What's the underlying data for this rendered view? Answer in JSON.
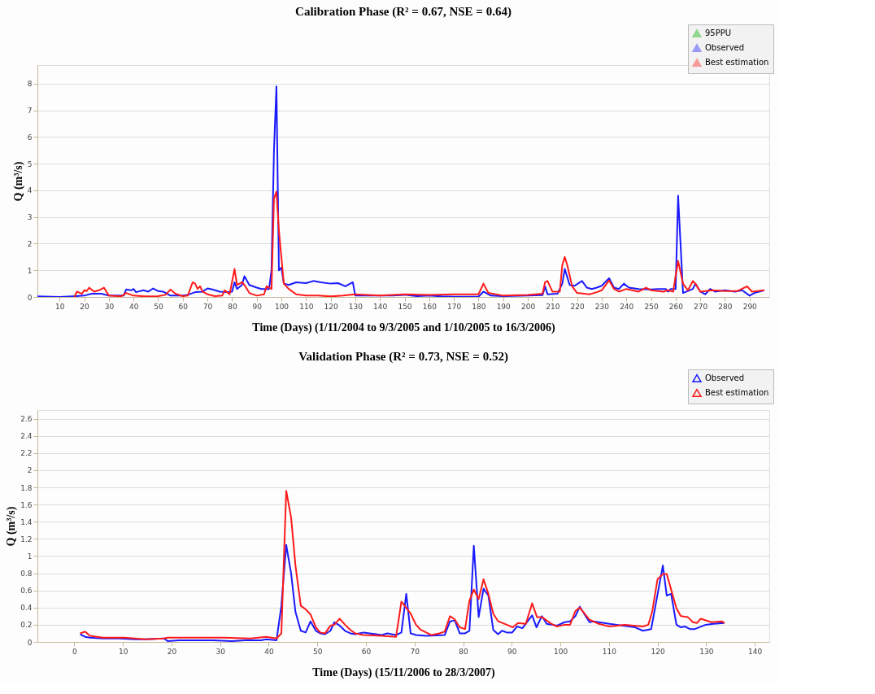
{
  "chart_data": [
    {
      "type": "line",
      "title": "Calibration Phase (R² = 0.67, NSE = 0.64)",
      "xlabel": "Time (Days) (1/11/2004 to 9/3/2005 and 1/10/2005 to 16/3/2006)",
      "ylabel": "Q (m³/s)",
      "xlim": [
        1,
        298
      ],
      "xticks": [
        10,
        20,
        30,
        40,
        50,
        60,
        70,
        80,
        90,
        100,
        110,
        120,
        130,
        140,
        150,
        160,
        170,
        180,
        190,
        200,
        210,
        220,
        230,
        240,
        250,
        260,
        270,
        280,
        290
      ],
      "ylim": [
        0,
        8.7
      ],
      "yticks": [
        0,
        1,
        2,
        3,
        4,
        5,
        6,
        7,
        8
      ],
      "grid": "y",
      "legend": "top right",
      "series": [
        {
          "name": "95PPU",
          "type": "area",
          "color": "#00b000"
        },
        {
          "name": "Observed",
          "color": "#1a1aff",
          "x": [
            1,
            7,
            10,
            15,
            20,
            23,
            27,
            30,
            36,
            37,
            39,
            40,
            41,
            44,
            46,
            48,
            50,
            52,
            55,
            60,
            62,
            65,
            68,
            70,
            72,
            75,
            78,
            80,
            81,
            82,
            84,
            85,
            87,
            90,
            92,
            94,
            95,
            96,
            97,
            98,
            99,
            100,
            101,
            103,
            106,
            110,
            113,
            116,
            120,
            123,
            126,
            129,
            130,
            135,
            140,
            145,
            150,
            155,
            160,
            165,
            170,
            180,
            182,
            185,
            190,
            200,
            206,
            207,
            208,
            212,
            214,
            215,
            217,
            219,
            222,
            224,
            226,
            228,
            230,
            233,
            235,
            237,
            239,
            241,
            245,
            250,
            253,
            256,
            257,
            258,
            260,
            261,
            263,
            267,
            268,
            270,
            272,
            274,
            276,
            280,
            284,
            287,
            290,
            292,
            296
          ],
          "values": [
            0.02,
            0.01,
            0,
            0.02,
            0.05,
            0.12,
            0.12,
            0.05,
            0.05,
            0.28,
            0.25,
            0.3,
            0.18,
            0.25,
            0.2,
            0.32,
            0.22,
            0.2,
            0.05,
            0.05,
            0.08,
            0.18,
            0.2,
            0.32,
            0.28,
            0.2,
            0.18,
            0.2,
            0.55,
            0.3,
            0.45,
            0.78,
            0.45,
            0.35,
            0.3,
            0.3,
            0.3,
            1.0,
            5.5,
            7.9,
            1.0,
            1.1,
            0.5,
            0.45,
            0.55,
            0.52,
            0.6,
            0.55,
            0.5,
            0.52,
            0.4,
            0.55,
            0.05,
            0.05,
            0.05,
            0.05,
            0.08,
            0.03,
            0.05,
            0.02,
            0.01,
            0.01,
            0.2,
            0.05,
            0.03,
            0.05,
            0.07,
            0.4,
            0.1,
            0.12,
            0.5,
            1.05,
            0.45,
            0.42,
            0.6,
            0.35,
            0.3,
            0.35,
            0.42,
            0.7,
            0.35,
            0.3,
            0.5,
            0.35,
            0.3,
            0.28,
            0.3,
            0.3,
            0.2,
            0.3,
            0.3,
            3.8,
            0.15,
            0.3,
            0.5,
            0.2,
            0.1,
            0.3,
            0.2,
            0.25,
            0.2,
            0.25,
            0.05,
            0.15,
            0.25
          ]
        },
        {
          "name": "Best estimation",
          "color": "#ff1a1a",
          "x": [
            16,
            17,
            19,
            20,
            21,
            22,
            24,
            26,
            28,
            30,
            35,
            37,
            40,
            45,
            50,
            53,
            55,
            57,
            60,
            62,
            64,
            65,
            66,
            67,
            68,
            70,
            73,
            76,
            77,
            79,
            81,
            82,
            84,
            85,
            87,
            90,
            93,
            94,
            96,
            97,
            98,
            99,
            101,
            103,
            106,
            110,
            115,
            120,
            125,
            130,
            140,
            150,
            160,
            170,
            180,
            182,
            184,
            190,
            200,
            206,
            207,
            208,
            210,
            213,
            214,
            215,
            216,
            218,
            220,
            225,
            228,
            230,
            233,
            235,
            237,
            240,
            245,
            248,
            250,
            255,
            257,
            259,
            260,
            261,
            263,
            265,
            267,
            268,
            270,
            275,
            280,
            285,
            289,
            291,
            296
          ],
          "values": [
            0,
            0.2,
            0.12,
            0.25,
            0.22,
            0.35,
            0.2,
            0.25,
            0.35,
            0.05,
            0.02,
            0.15,
            0.05,
            0.02,
            0.03,
            0.08,
            0.28,
            0.12,
            0.03,
            0.05,
            0.55,
            0.5,
            0.3,
            0.4,
            0.2,
            0.1,
            0.03,
            0.05,
            0.25,
            0.1,
            1.05,
            0.45,
            0.55,
            0.45,
            0.15,
            0.05,
            0.1,
            0.4,
            0.3,
            3.7,
            3.95,
            2.5,
            0.5,
            0.3,
            0.1,
            0.05,
            0.05,
            0.02,
            0.05,
            0.1,
            0.05,
            0.1,
            0.08,
            0.1,
            0.1,
            0.5,
            0.15,
            0.05,
            0.08,
            0.12,
            0.55,
            0.6,
            0.2,
            0.2,
            1.2,
            1.5,
            1.2,
            0.4,
            0.15,
            0.1,
            0.18,
            0.25,
            0.62,
            0.3,
            0.2,
            0.3,
            0.2,
            0.35,
            0.25,
            0.2,
            0.25,
            0.2,
            0.8,
            1.35,
            0.5,
            0.25,
            0.6,
            0.5,
            0.2,
            0.25,
            0.22,
            0.22,
            0.4,
            0.2,
            0.25
          ]
        }
      ]
    },
    {
      "type": "line",
      "title": "Validation Phase (R² = 0.73, NSE = 0.52)",
      "xlabel": "Time (Days) (15/11/2006 to 28/3/2007)",
      "ylabel": "Q (m³/s)",
      "xlim": [
        -7.6,
        143
      ],
      "xticks": [
        0,
        10,
        20,
        30,
        40,
        50,
        60,
        70,
        80,
        90,
        100,
        110,
        120,
        130,
        140
      ],
      "ylim": [
        0,
        2.7
      ],
      "yticks": [
        0,
        0.2,
        0.4,
        0.6,
        0.8,
        1,
        1.2,
        1.4,
        1.6,
        1.8,
        2,
        2.2,
        2.4,
        2.6
      ],
      "grid": "y",
      "legend": "top right",
      "series": [
        {
          "name": "Observed",
          "color": "#1a1aff",
          "x": [
            1.2,
            2.2,
            3.2,
            5.9,
            9.2,
            12.4,
            14.6,
            18.4,
            19.2,
            21.6,
            25.4,
            28.6,
            32.4,
            35.1,
            38.4,
            39.5,
            41.6,
            42.6,
            43.6,
            44.6,
            45.5,
            46.6,
            47.6,
            48.6,
            49.7,
            50.6,
            51.6,
            52.7,
            53.5,
            54.6,
            55.7,
            56.8,
            57.8,
            59.5,
            63.3,
            64.4,
            66.2,
            67.3,
            68.3,
            69.2,
            70.3,
            72.4,
            76.2,
            77.3,
            78.3,
            79.3,
            80.4,
            81.3,
            82.2,
            83.2,
            84.2,
            85.2,
            86.2,
            87.2,
            88.0,
            89.0,
            90.1,
            91.1,
            92.2,
            94.2,
            95.1,
            96.2,
            97.2,
            99.3,
            100.9,
            102.0,
            103.1,
            104.0,
            106.0,
            106.8,
            110.1,
            115.4,
            117.0,
            118.7,
            121.1,
            121.9,
            122.8,
            123.9,
            124.8,
            125.6,
            126.7,
            127.7,
            129.9,
            131.5,
            133.7
          ],
          "values": [
            0.09,
            0.06,
            0.05,
            0.04,
            0.04,
            0.03,
            0.03,
            0.04,
            0.01,
            0.02,
            0.02,
            0.02,
            0.01,
            0.02,
            0.02,
            0.03,
            0.02,
            0.42,
            1.13,
            0.8,
            0.35,
            0.13,
            0.11,
            0.24,
            0.13,
            0.1,
            0.09,
            0.13,
            0.23,
            0.19,
            0.13,
            0.1,
            0.09,
            0.11,
            0.08,
            0.1,
            0.08,
            0.11,
            0.56,
            0.1,
            0.08,
            0.07,
            0.08,
            0.24,
            0.25,
            0.1,
            0.1,
            0.13,
            1.12,
            0.29,
            0.62,
            0.54,
            0.14,
            0.09,
            0.13,
            0.11,
            0.11,
            0.18,
            0.16,
            0.31,
            0.17,
            0.3,
            0.21,
            0.19,
            0.23,
            0.24,
            0.3,
            0.41,
            0.23,
            0.24,
            0.21,
            0.17,
            0.13,
            0.15,
            0.89,
            0.54,
            0.56,
            0.2,
            0.17,
            0.18,
            0.15,
            0.15,
            0.2,
            0.21,
            0.22
          ]
        },
        {
          "name": "Best estimation",
          "color": "#ff1a1a",
          "x": [
            1.2,
            2.2,
            3.2,
            5.9,
            10.3,
            14.6,
            18.4,
            19.2,
            25.4,
            28.1,
            30.8,
            36.2,
            39.5,
            41.6,
            42.6,
            43.6,
            44.6,
            45.5,
            46.6,
            47.6,
            48.6,
            49.7,
            50.6,
            51.6,
            52.7,
            53.5,
            54.6,
            55.7,
            56.8,
            57.8,
            59.5,
            63.3,
            66.2,
            67.3,
            69.2,
            70.3,
            71.3,
            73.5,
            75.1,
            76.2,
            77.3,
            78.3,
            79.3,
            80.4,
            81.3,
            82.2,
            83.2,
            84.2,
            85.2,
            86.2,
            87.2,
            89.0,
            90.2,
            91.3,
            92.9,
            94.2,
            95.2,
            96.2,
            98.2,
            99.3,
            100.9,
            102.0,
            103.1,
            104.0,
            106.0,
            107.9,
            110.1,
            113.3,
            117.0,
            118.1,
            118.9,
            120.0,
            121.1,
            121.9,
            123.9,
            124.8,
            126.2,
            127.3,
            128.1,
            128.9,
            131.1,
            133.2,
            133.8
          ],
          "values": [
            0.1,
            0.12,
            0.07,
            0.05,
            0.05,
            0.03,
            0.04,
            0.05,
            0.05,
            0.05,
            0.05,
            0.04,
            0.06,
            0.04,
            0.1,
            1.76,
            1.45,
            0.89,
            0.42,
            0.38,
            0.32,
            0.17,
            0.11,
            0.1,
            0.19,
            0.2,
            0.27,
            0.2,
            0.14,
            0.1,
            0.08,
            0.07,
            0.06,
            0.47,
            0.33,
            0.2,
            0.14,
            0.08,
            0.1,
            0.12,
            0.3,
            0.26,
            0.17,
            0.15,
            0.48,
            0.61,
            0.5,
            0.73,
            0.56,
            0.33,
            0.24,
            0.2,
            0.17,
            0.22,
            0.21,
            0.45,
            0.29,
            0.29,
            0.21,
            0.18,
            0.2,
            0.2,
            0.36,
            0.4,
            0.26,
            0.21,
            0.18,
            0.2,
            0.18,
            0.2,
            0.35,
            0.73,
            0.79,
            0.79,
            0.39,
            0.3,
            0.29,
            0.23,
            0.22,
            0.27,
            0.23,
            0.24,
            0.22
          ]
        }
      ]
    }
  ]
}
